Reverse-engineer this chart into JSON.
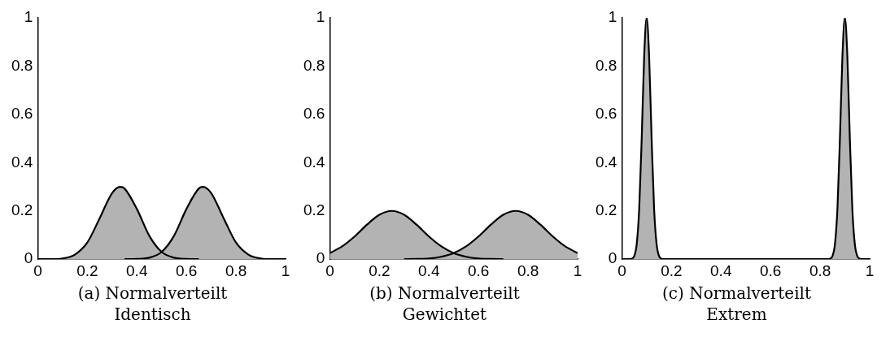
{
  "chart_data": [
    {
      "type": "area",
      "title": "(a) Normalverteilt",
      "subtitle": "Identisch",
      "xlim": [
        0,
        1
      ],
      "ylim": [
        0,
        1
      ],
      "xticks": [
        0,
        0.2,
        0.4,
        0.6,
        0.8,
        1
      ],
      "yticks": [
        0,
        0.2,
        0.4,
        0.6,
        0.8,
        1
      ],
      "marker": "none",
      "series": [
        {
          "color": "#b3b3b3",
          "x": [
            0,
            0.05,
            0.1,
            0.15,
            0.2,
            0.25,
            0.3,
            0.333,
            0.35,
            0.4,
            0.45,
            0.5,
            0.55,
            0.6,
            0.65
          ],
          "values": [
            0,
            0,
            0.003,
            0.019,
            0.069,
            0.17,
            0.274,
            0.3,
            0.293,
            0.208,
            0.097,
            0.03,
            0.006,
            0.001,
            0
          ]
        },
        {
          "color": "#b3b3b3",
          "x": [
            0.35,
            0.4,
            0.45,
            0.5,
            0.55,
            0.6,
            0.65,
            0.667,
            0.7,
            0.75,
            0.8,
            0.85,
            0.9,
            0.95,
            1
          ],
          "values": [
            0,
            0.001,
            0.006,
            0.03,
            0.097,
            0.208,
            0.293,
            0.3,
            0.274,
            0.17,
            0.069,
            0.019,
            0.003,
            0,
            0
          ]
        }
      ]
    },
    {
      "type": "area",
      "title": "(b) Normalverteilt",
      "subtitle": "Gewichtet",
      "xlim": [
        0,
        1
      ],
      "ylim": [
        0,
        1
      ],
      "xticks": [
        0,
        0.2,
        0.4,
        0.6,
        0.8,
        1
      ],
      "yticks": [
        0,
        0.2,
        0.4,
        0.6,
        0.8,
        1
      ],
      "marker": "none",
      "series": [
        {
          "color": "#b3b3b3",
          "x": [
            0,
            0.05,
            0.1,
            0.15,
            0.2,
            0.25,
            0.3,
            0.35,
            0.4,
            0.45,
            0.5,
            0.55,
            0.6,
            0.65,
            0.7
          ],
          "values": [
            0.025,
            0.053,
            0.094,
            0.143,
            0.184,
            0.2,
            0.184,
            0.143,
            0.094,
            0.053,
            0.025,
            0.01,
            0.003,
            0.001,
            0
          ]
        },
        {
          "color": "#b3b3b3",
          "x": [
            0.3,
            0.35,
            0.4,
            0.45,
            0.5,
            0.55,
            0.6,
            0.65,
            0.7,
            0.75,
            0.8,
            0.85,
            0.9,
            0.95,
            1
          ],
          "values": [
            0,
            0.001,
            0.003,
            0.01,
            0.025,
            0.053,
            0.094,
            0.143,
            0.184,
            0.2,
            0.184,
            0.143,
            0.094,
            0.053,
            0.025
          ]
        }
      ]
    },
    {
      "type": "area",
      "title": "(c) Normalverteilt",
      "subtitle": "Extrem",
      "xlim": [
        0,
        1
      ],
      "ylim": [
        0,
        1
      ],
      "xticks": [
        0,
        0.2,
        0.4,
        0.6,
        0.8,
        1
      ],
      "yticks": [
        0,
        0.2,
        0.4,
        0.6,
        0.8,
        1
      ],
      "marker": "none",
      "series": [
        {
          "color": "#b3b3b3",
          "x": [
            0,
            0.03,
            0.04,
            0.05,
            0.06,
            0.07,
            0.08,
            0.09,
            0.1,
            0.11,
            0.12,
            0.13,
            0.14,
            0.15,
            0.16,
            0.17,
            0.5
          ],
          "values": [
            0,
            0,
            0.002,
            0.013,
            0.063,
            0.21,
            0.5,
            0.84,
            1,
            0.84,
            0.5,
            0.21,
            0.063,
            0.013,
            0.002,
            0,
            0
          ]
        },
        {
          "color": "#b3b3b3",
          "x": [
            0.5,
            0.83,
            0.84,
            0.85,
            0.86,
            0.87,
            0.88,
            0.89,
            0.9,
            0.91,
            0.92,
            0.93,
            0.94,
            0.95,
            0.96,
            0.97,
            1
          ],
          "values": [
            0,
            0,
            0.002,
            0.013,
            0.063,
            0.21,
            0.5,
            0.84,
            1,
            0.84,
            0.5,
            0.21,
            0.063,
            0.013,
            0.002,
            0,
            0
          ]
        }
      ]
    }
  ]
}
